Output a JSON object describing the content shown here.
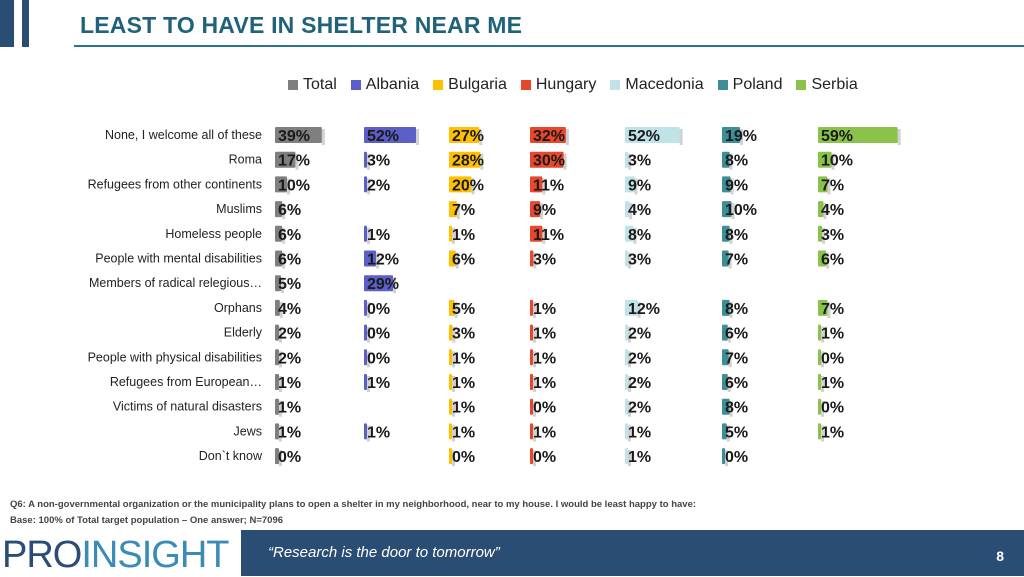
{
  "title": "LEAST TO HAVE IN SHELTER NEAR ME",
  "footnote": {
    "question": "Q6: A non-governmental organization or the municipality plans to open a shelter in my neighborhood, near to my house. I would be least happy to have:",
    "base": "Base: 100% of Total target population – One answer; N=7096"
  },
  "footer": {
    "logo_part1": "PRO",
    "logo_part2": "INSIGHT",
    "tagline": "“Research is the door to tomorrow”",
    "page": "8"
  },
  "colors": {
    "title": "#1f6279",
    "footer_bar": "#2a4d74",
    "Total": "#7f7f7f",
    "Albania": "#5b5fc7",
    "Bulgaria": "#ffc000",
    "Hungary": "#e8472b",
    "Macedonia": "#bfe3e6",
    "Poland": "#3e8e97",
    "Serbia": "#8bc34a"
  },
  "chart_data": {
    "type": "bar",
    "categories": [
      "None, I welcome all of these",
      "Roma",
      "Refugees from other continents",
      "Muslims",
      "Homeless people",
      "People with mental disabilities",
      "Members of radical relegious…",
      "Orphans",
      "Elderly",
      "People with physical disabilities",
      "Refugees from European…",
      "Victims of natural disasters",
      "Jews",
      "Don`t know"
    ],
    "series": [
      {
        "name": "Total",
        "values": [
          39,
          17,
          10,
          6,
          6,
          6,
          5,
          4,
          2,
          2,
          1,
          1,
          1,
          0
        ],
        "labels": [
          "39%",
          "17%",
          "10%",
          "6%",
          "6%",
          "6%",
          "5%",
          "4%",
          "2%",
          "2%",
          "1%",
          "1%",
          "1%",
          "0%"
        ]
      },
      {
        "name": "Albania",
        "values": [
          52,
          3,
          2,
          null,
          1,
          12,
          29,
          0,
          0,
          0,
          1,
          null,
          1,
          null
        ],
        "labels": [
          "52%",
          "3%",
          "2%",
          "",
          "1%",
          "12%",
          "29%",
          "0%",
          "0%",
          "0%",
          "1%",
          "",
          "1%",
          ""
        ]
      },
      {
        "name": "Bulgaria",
        "values": [
          27,
          28,
          20,
          7,
          1,
          6,
          null,
          5,
          3,
          1,
          1,
          1,
          1,
          0
        ],
        "labels": [
          "27%",
          "28%",
          "20%",
          "7%",
          "1%",
          "6%",
          "",
          "5%",
          "3%",
          "1%",
          "1%",
          "1%",
          "1%",
          "0%"
        ]
      },
      {
        "name": "Hungary",
        "values": [
          32,
          30,
          11,
          9,
          11,
          3,
          null,
          1,
          1,
          1,
          1,
          0,
          1,
          0
        ],
        "labels": [
          "32%",
          "30%",
          "11%",
          "9%",
          "11%",
          "3%",
          "",
          "1%",
          "1%",
          "1%",
          "1%",
          "0%",
          "1%",
          "0%"
        ]
      },
      {
        "name": "Macedonia",
        "values": [
          52,
          3,
          9,
          4,
          8,
          3,
          null,
          12,
          2,
          2,
          2,
          2,
          1,
          1
        ],
        "labels": [
          "52%",
          "3%",
          "9%",
          "4%",
          "8%",
          "3%",
          "",
          "12%",
          "2%",
          "2%",
          "2%",
          "2%",
          "1%",
          "1%"
        ]
      },
      {
        "name": "Poland",
        "values": [
          19,
          8,
          9,
          10,
          8,
          7,
          null,
          8,
          6,
          7,
          6,
          8,
          5,
          0
        ],
        "labels": [
          "19%",
          "8%",
          "9%",
          "10%",
          "8%",
          "7%",
          "",
          "8%",
          "6%",
          "7%",
          "6%",
          "8%",
          "5%",
          "0%"
        ]
      },
      {
        "name": "Serbia",
        "values": [
          59,
          10,
          7,
          4,
          3,
          6,
          null,
          7,
          1,
          0,
          1,
          0,
          1,
          null
        ],
        "labels": [
          "59%",
          "10%",
          "7%",
          "4%",
          "3%",
          "6%",
          "",
          "7%",
          "1%",
          "0%",
          "1%",
          "0%",
          "1%",
          ""
        ]
      }
    ],
    "legend": "top"
  }
}
